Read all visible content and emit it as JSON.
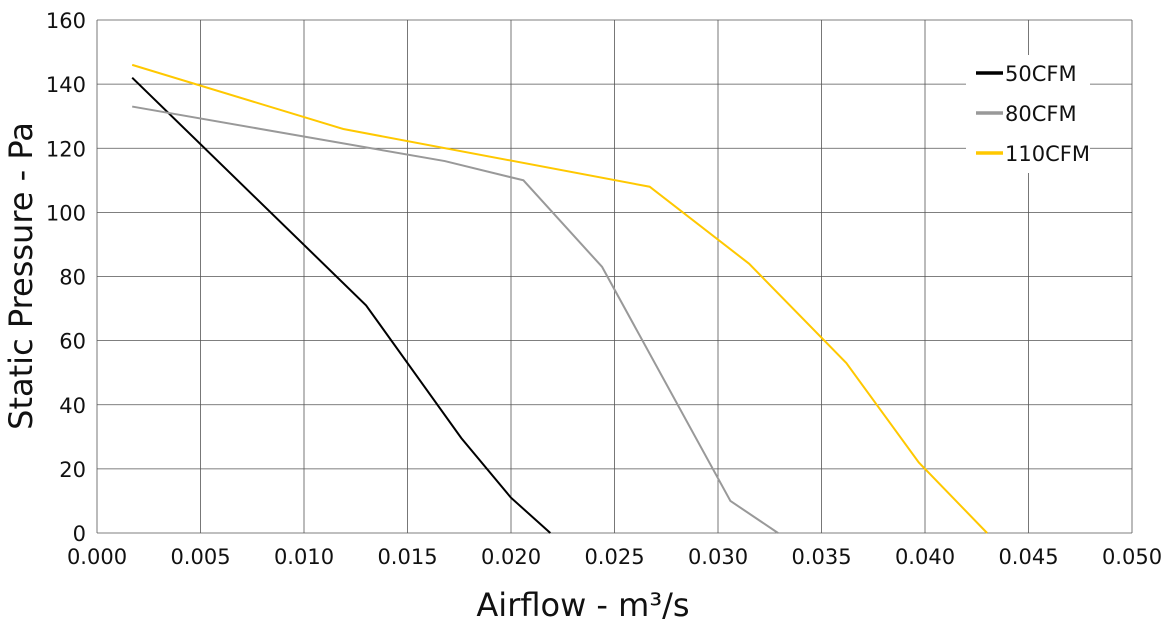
{
  "chart_data": {
    "type": "line",
    "title": "",
    "xlabel": "Airflow - m³/s",
    "ylabel": "Static Pressure - Pa",
    "xlim": [
      0,
      0.05
    ],
    "ylim": [
      0,
      160
    ],
    "grid": true,
    "legend_position": "top-right",
    "x_ticks": [
      "0.000",
      "0.005",
      "0.010",
      "0.015",
      "0.020",
      "0.025",
      "0.030",
      "0.035",
      "0.040",
      "0.045",
      "0.050"
    ],
    "y_ticks": [
      "0",
      "20",
      "40",
      "60",
      "80",
      "100",
      "120",
      "140",
      "160"
    ],
    "series": [
      {
        "name": "50CFM",
        "color": "#000000",
        "x": [
          0.0017,
          0.013,
          0.0176,
          0.02,
          0.0219
        ],
        "y": [
          142,
          71,
          29.6,
          11,
          0
        ]
      },
      {
        "name": "80CFM",
        "color": "#999999",
        "x": [
          0.0017,
          0.0168,
          0.0206,
          0.0244,
          0.0306,
          0.0329
        ],
        "y": [
          133,
          116,
          110,
          83,
          10,
          0
        ]
      },
      {
        "name": "110CFM",
        "color": "#ffc800",
        "x": [
          0.0017,
          0.0119,
          0.0267,
          0.0315,
          0.0362,
          0.0397,
          0.043
        ],
        "y": [
          146,
          126,
          108,
          84,
          53,
          22,
          0
        ]
      }
    ]
  }
}
